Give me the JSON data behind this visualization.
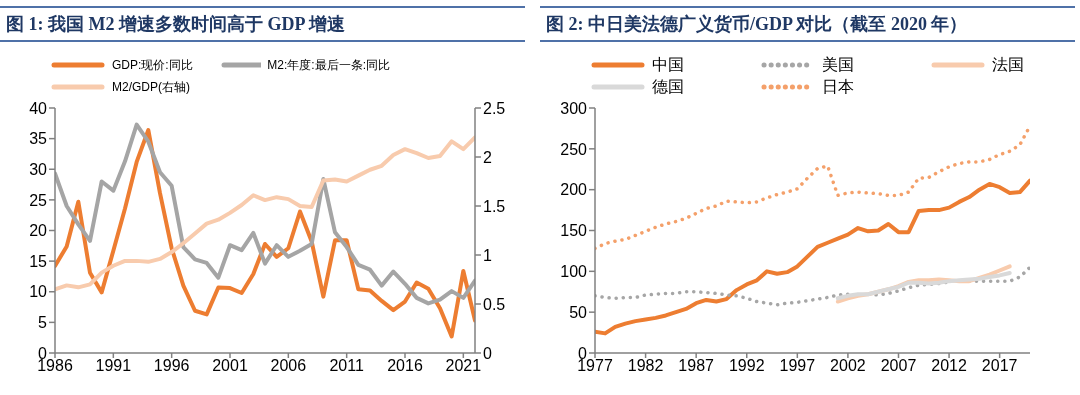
{
  "chart_data": [
    {
      "type": "line",
      "title": "图 1: 我国 M2 增速多数时间高于 GDP 增速",
      "x": [
        1986,
        1987,
        1988,
        1989,
        1990,
        1991,
        1992,
        1993,
        1994,
        1995,
        1996,
        1997,
        1998,
        1999,
        2000,
        2001,
        2002,
        2003,
        2004,
        2005,
        2006,
        2007,
        2008,
        2009,
        2010,
        2011,
        2012,
        2013,
        2014,
        2015,
        2016,
        2017,
        2018,
        2019,
        2020,
        2021,
        2022
      ],
      "xlim": [
        1986,
        2022
      ],
      "xticks": [
        1986,
        1991,
        1996,
        2001,
        2006,
        2011,
        2016,
        2021
      ],
      "ylim": [
        0,
        40
      ],
      "yticks": [
        0,
        5,
        10,
        15,
        20,
        25,
        30,
        35,
        40
      ],
      "y2lim": [
        0,
        2.5
      ],
      "y2ticks": [
        0,
        0.5,
        1,
        1.5,
        2,
        2.5
      ],
      "legend": "top",
      "series": [
        {
          "name": "GDP:现价:同比",
          "color": "#ed7d31",
          "values": [
            14.2,
            17.4,
            24.7,
            13.1,
            9.9,
            16.7,
            23.6,
            31.2,
            36.4,
            26.1,
            17.1,
            11.0,
            6.9,
            6.3,
            10.7,
            10.6,
            9.8,
            12.9,
            17.8,
            15.7,
            17.1,
            23.1,
            18.2,
            9.2,
            18.4,
            18.4,
            10.4,
            10.2,
            8.5,
            7.0,
            8.4,
            11.5,
            10.5,
            7.3,
            2.7,
            13.4,
            5.3
          ]
        },
        {
          "name": "M2:年度:最后一条:同比",
          "color": "#a5a5a5",
          "values": [
            29.3,
            24.0,
            21.0,
            18.3,
            28.0,
            26.5,
            31.3,
            37.3,
            34.5,
            29.5,
            27.3,
            17.3,
            15.3,
            14.7,
            12.3,
            17.6,
            16.8,
            19.6,
            14.6,
            17.6,
            15.7,
            16.7,
            17.8,
            28.4,
            19.7,
            17.3,
            14.4,
            13.6,
            11.0,
            13.3,
            11.3,
            9.0,
            8.1,
            8.7,
            10.1,
            9.0,
            11.8
          ]
        },
        {
          "name": "M2/GDP(右轴)",
          "color": "#f8cbad",
          "axis": "y2",
          "values": [
            0.65,
            0.69,
            0.67,
            0.7,
            0.82,
            0.89,
            0.94,
            0.94,
            0.93,
            0.96,
            1.03,
            1.12,
            1.22,
            1.32,
            1.36,
            1.43,
            1.51,
            1.61,
            1.56,
            1.59,
            1.57,
            1.5,
            1.49,
            1.76,
            1.77,
            1.75,
            1.81,
            1.87,
            1.91,
            2.02,
            2.08,
            2.04,
            1.99,
            2.01,
            2.16,
            2.08,
            2.2
          ]
        }
      ]
    },
    {
      "type": "line",
      "title": "图 2: 中日美法德广义货币/GDP 对比（截至 2020 年）",
      "x": [
        1977,
        1978,
        1979,
        1980,
        1981,
        1982,
        1983,
        1984,
        1985,
        1986,
        1987,
        1988,
        1989,
        1990,
        1991,
        1992,
        1993,
        1994,
        1995,
        1996,
        1997,
        1998,
        1999,
        2000,
        2001,
        2002,
        2003,
        2004,
        2005,
        2006,
        2007,
        2008,
        2009,
        2010,
        2011,
        2012,
        2013,
        2014,
        2015,
        2016,
        2017,
        2018,
        2019,
        2020
      ],
      "xlim": [
        1977,
        2020
      ],
      "xticks": [
        1977,
        1982,
        1987,
        1992,
        1997,
        2002,
        2007,
        2012,
        2017
      ],
      "ylim": [
        0,
        300
      ],
      "yticks": [
        0,
        50,
        100,
        150,
        200,
        250,
        300
      ],
      "legend": "top",
      "series": [
        {
          "name": "中国",
          "color": "#ed7d31",
          "line_style": "solid",
          "values": [
            26,
            24,
            32,
            36,
            39,
            41,
            43,
            46,
            50,
            54,
            61,
            65,
            63,
            66,
            77,
            84,
            89,
            100,
            97,
            99,
            106,
            118,
            130,
            135,
            140,
            145,
            153,
            149,
            150,
            158,
            148,
            148,
            174,
            175,
            175,
            178,
            185,
            191,
            200,
            207,
            203,
            196,
            197,
            211
          ]
        },
        {
          "name": "美国",
          "color": "#a6a6a6",
          "line_style": "dotted",
          "values": [
            70,
            68,
            67,
            68,
            68,
            71,
            72,
            73,
            73,
            75,
            75,
            74,
            73,
            71,
            70,
            67,
            63,
            61,
            59,
            61,
            62,
            64,
            66,
            68,
            71,
            72,
            71,
            72,
            71,
            73,
            76,
            80,
            83,
            84,
            85,
            87,
            null,
            88,
            88,
            88,
            88,
            88,
            93,
            105
          ]
        },
        {
          "name": "法国",
          "color": "#f8cbad",
          "line_style": "solid",
          "x": [
            2001,
            2002,
            2003,
            2004,
            2005,
            2006,
            2007,
            2008,
            2009,
            2010,
            2011,
            2012,
            2013,
            2014,
            2015,
            2016,
            2017,
            2018
          ],
          "values": [
            63,
            67,
            70,
            72,
            75,
            78,
            82,
            87,
            89,
            89,
            90,
            89,
            88,
            88,
            92,
            96,
            101,
            106
          ]
        },
        {
          "name": "德国",
          "color": "#d9d9d9",
          "line_style": "solid",
          "x": [
            2001,
            2002,
            2003,
            2004,
            2005,
            2006,
            2007,
            2008,
            2009,
            2010,
            2011,
            2012,
            2013,
            2014,
            2015,
            2016,
            2017,
            2018
          ],
          "values": [
            67,
            70,
            72,
            72,
            75,
            78,
            81,
            86,
            86,
            85,
            86,
            88,
            89,
            90,
            91,
            93,
            95,
            98
          ]
        },
        {
          "name": "日本",
          "color": "#f4a06a",
          "line_style": "dotted",
          "values": [
            128,
            134,
            137,
            139,
            144,
            149,
            154,
            158,
            161,
            165,
            171,
            177,
            180,
            186,
            185,
            184,
            185,
            190,
            194,
            197,
            201,
            214,
            226,
            229,
            193,
            196,
            197,
            196,
            195,
            193,
            193,
            197,
            214,
            215,
            222,
            228,
            232,
            234,
            234,
            237,
            243,
            247,
            255,
            278
          ]
        }
      ]
    }
  ]
}
